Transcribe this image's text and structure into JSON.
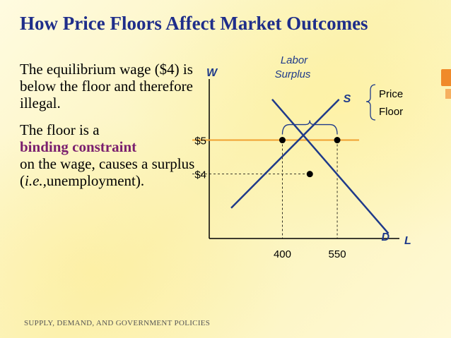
{
  "title": "How Price Floors Affect Market Outcomes",
  "body": {
    "p1": "The equilibrium wage ($4) is below the floor and therefore illegal.",
    "p2_a": "The floor is a",
    "p2_emph": "binding constraint",
    "p2_b": "on the wage, causes a surplus",
    "p2_c_open": "(",
    "p2_c_ie": "i.e.,",
    "p2_c_rest": "unemployment)."
  },
  "footer": "SUPPLY, DEMAND, AND GOVERNMENT POLICIES",
  "chart_data": {
    "type": "line",
    "ylabel": "W",
    "xlabel": "L",
    "y_ticks": [
      {
        "value": 5,
        "label": "$5"
      },
      {
        "value": 4,
        "label": "$4"
      }
    ],
    "x_ticks": [
      {
        "value": 400,
        "label": "400"
      },
      {
        "value": 550,
        "label": "550"
      }
    ],
    "series": [
      {
        "name": "S",
        "points": [
          [
            260,
            3
          ],
          [
            555,
            6.2
          ]
        ]
      },
      {
        "name": "D",
        "points": [
          [
            372,
            6.2
          ],
          [
            690,
            2.25
          ]
        ]
      }
    ],
    "price_floor": {
      "value": 5,
      "label_line1": "Price",
      "label_line2": "Floor"
    },
    "equilibrium": {
      "x": 475,
      "y": 4
    },
    "floor_points": [
      {
        "x": 400,
        "y": 5
      },
      {
        "x": 550,
        "y": 5
      }
    ],
    "surplus_label_line1": "Labor",
    "surplus_label_line2": "Surplus",
    "xlim": [
      200,
      720
    ],
    "ylim": [
      2.1,
      6.8
    ],
    "colors": {
      "title": "#1f2e8a",
      "curves": "#1f3a8a",
      "floor_line": "#f0a030",
      "emphasis": "#7a1f6e",
      "labels": "#1f3a8a"
    }
  }
}
